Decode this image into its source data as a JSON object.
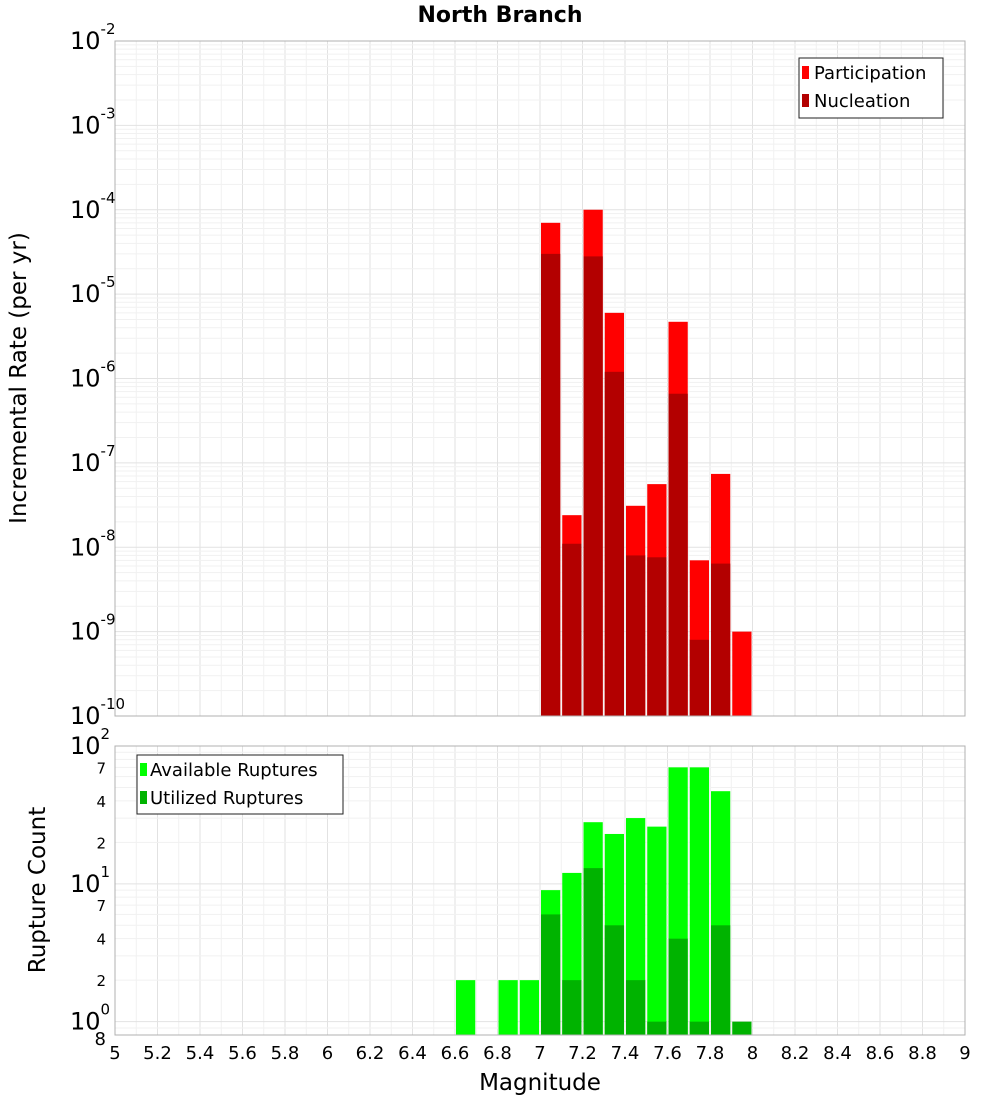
{
  "chart_data": [
    {
      "type": "bar",
      "title": "North Branch",
      "ylabel": "Incremental Rate (per yr)",
      "yscale": "log",
      "ylim": [
        1e-10,
        0.01
      ],
      "xlim": [
        5,
        9
      ],
      "grid": true,
      "legend_position": "top-right",
      "bar_width": 0.1,
      "y_tick_labels": [
        {
          "value": 1e-10,
          "base": "10",
          "exp": "-10"
        },
        {
          "value": 1e-09,
          "base": "10",
          "exp": "-9"
        },
        {
          "value": 1e-08,
          "base": "10",
          "exp": "-8"
        },
        {
          "value": 1e-07,
          "base": "10",
          "exp": "-7"
        },
        {
          "value": 1e-06,
          "base": "10",
          "exp": "-6"
        },
        {
          "value": 1e-05,
          "base": "10",
          "exp": "-5"
        },
        {
          "value": 0.0001,
          "base": "10",
          "exp": "-4"
        },
        {
          "value": 0.001,
          "base": "10",
          "exp": "-3"
        },
        {
          "value": 0.01,
          "base": "10",
          "exp": "-2"
        }
      ],
      "x": [
        7.05,
        7.15,
        7.25,
        7.35,
        7.45,
        7.55,
        7.65,
        7.75,
        7.85,
        7.95
      ],
      "series": [
        {
          "name": "Participation",
          "color": "#ff0000",
          "values": [
            7e-05,
            2.4e-08,
            0.0001,
            6e-06,
            3.1e-08,
            5.6e-08,
            4.7e-06,
            7e-09,
            7.4e-08,
            1e-09
          ]
        },
        {
          "name": "Nucleation",
          "color": "#b30000",
          "values": [
            3e-05,
            1.1e-08,
            2.8e-05,
            1.2e-06,
            8e-09,
            7.6e-09,
            6.6e-07,
            8e-10,
            6.4e-09,
            null
          ]
        }
      ]
    },
    {
      "type": "bar",
      "xlabel": "Magnitude",
      "ylabel": "Rupture Count",
      "yscale": "log",
      "ylim": [
        0.8,
        100
      ],
      "xlim": [
        5,
        9
      ],
      "grid": true,
      "legend_position": "top-left",
      "bar_width": 0.1,
      "x_ticks": [
        "5",
        "5.2",
        "5.4",
        "5.6",
        "5.8",
        "6",
        "6.2",
        "6.4",
        "6.6",
        "6.8",
        "7",
        "7.2",
        "7.4",
        "7.6",
        "7.8",
        "8",
        "8.2",
        "8.4",
        "8.6",
        "8.8",
        "9"
      ],
      "y_tick_labels": [
        {
          "value": 1,
          "base": "10",
          "exp": "0"
        },
        {
          "value": 10,
          "base": "10",
          "exp": "1"
        },
        {
          "value": 100,
          "base": "10",
          "exp": "2"
        }
      ],
      "y_minor_labels": [
        {
          "value": 0.8,
          "label": "8"
        },
        {
          "value": 2,
          "label": "2"
        },
        {
          "value": 4,
          "label": "4"
        },
        {
          "value": 7,
          "label": "7"
        },
        {
          "value": 20,
          "label": "2"
        },
        {
          "value": 40,
          "label": "4"
        },
        {
          "value": 70,
          "label": "7"
        }
      ],
      "x": [
        6.65,
        6.85,
        6.95,
        7.05,
        7.15,
        7.25,
        7.35,
        7.45,
        7.55,
        7.65,
        7.75,
        7.85,
        7.95
      ],
      "series": [
        {
          "name": "Available Ruptures",
          "color": "#00ff00",
          "values": [
            2,
            2,
            2,
            9,
            12,
            28,
            23,
            30,
            26,
            70,
            70,
            47,
            null
          ]
        },
        {
          "name": "Utilized Ruptures",
          "color": "#00b300",
          "values": [
            null,
            null,
            null,
            6,
            2,
            13,
            5,
            2,
            1,
            4,
            1,
            5,
            1
          ]
        }
      ]
    }
  ]
}
